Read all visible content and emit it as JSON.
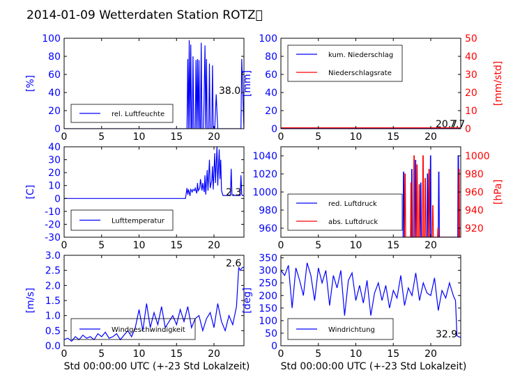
{
  "title": "2014-01-09 Wetterdaten Station ROTZ\u0000",
  "colors": {
    "primary": "#0000ff",
    "secondary": "#ff0000",
    "axis": "#000000",
    "legend_border": "#000000"
  },
  "chart_data": [
    {
      "id": "humidity",
      "type": "line",
      "ylabel": "[%]",
      "xlim": [
        0,
        24
      ],
      "ylim": [
        0,
        100
      ],
      "xticks": [
        0,
        5,
        10,
        15,
        20
      ],
      "yticks": [
        0,
        20,
        40,
        60,
        80,
        100
      ],
      "ytick_color": "#0000ff",
      "series": [
        {
          "name": "rel. Luftfeuchte",
          "color": "#0000ff",
          "x": [
            0,
            16.4,
            16.5,
            16.6,
            16.7,
            16.8,
            16.9,
            17.0,
            17.1,
            17.2,
            17.3,
            17.5,
            17.6,
            17.7,
            17.8,
            17.9,
            18.0,
            18.1,
            18.2,
            18.3,
            18.4,
            18.6,
            18.8,
            18.9,
            19.0,
            19.1,
            19.3,
            19.4,
            19.5,
            19.7,
            19.8,
            19.9,
            20.1,
            20.3,
            20.5,
            20.7,
            20.9,
            21.0,
            21.2,
            23.3,
            23.4,
            23.6,
            23.7,
            24
          ],
          "y": [
            0,
            0,
            77,
            0,
            98,
            0,
            93,
            0,
            0,
            80,
            0,
            0,
            76,
            0,
            77,
            0,
            76,
            0,
            0,
            95,
            0,
            0,
            92,
            0,
            77,
            0,
            0,
            72,
            0,
            0,
            70,
            0,
            0,
            38,
            0,
            0,
            0,
            0,
            0,
            0,
            0,
            0,
            77,
            0
          ]
        }
      ],
      "annotation": "38.0",
      "legend_location": "lower-left"
    },
    {
      "id": "precipitation",
      "type": "line",
      "ylabel": "[mm]",
      "ylabel_right": "[mm/std]",
      "xlim": [
        0,
        24
      ],
      "ylim": [
        0,
        100
      ],
      "ylim_right": [
        0,
        50
      ],
      "xticks": [
        0,
        5,
        10,
        15,
        20
      ],
      "yticks": [
        0,
        20,
        40,
        60,
        80,
        100
      ],
      "yticks_right": [
        0,
        10,
        20,
        30,
        40,
        50
      ],
      "ytick_color": "#0000ff",
      "ytick_color_right": "#ff0000",
      "series": [
        {
          "name": "kum. Niederschlag",
          "color": "#0000ff",
          "axis": "left",
          "x": [
            0,
            24
          ],
          "y": [
            0.6,
            0.6
          ]
        },
        {
          "name": "Niederschlagsrate",
          "color": "#ff0000",
          "axis": "right",
          "x": [
            0,
            24
          ],
          "y": [
            0.5,
            0.5
          ]
        }
      ],
      "annotation": "20.7",
      "annotation_right": "7.7",
      "legend_location": "upper-left"
    },
    {
      "id": "temperature",
      "type": "line",
      "ylabel": "[C]",
      "xlim": [
        0,
        24
      ],
      "ylim": [
        -30,
        40
      ],
      "xticks": [
        0,
        5,
        10,
        15,
        20
      ],
      "yticks": [
        -30,
        -20,
        -10,
        0,
        10,
        20,
        30,
        40
      ],
      "ytick_color": "#0000ff",
      "series": [
        {
          "name": "Lufttemperatur",
          "color": "#0000ff",
          "x": [
            0,
            16.2,
            16.4,
            16.5,
            16.6,
            16.8,
            16.9,
            17.1,
            17.2,
            17.4,
            17.5,
            17.7,
            17.8,
            17.9,
            18.1,
            18.2,
            18.4,
            18.5,
            18.7,
            18.8,
            18.9,
            19.1,
            19.2,
            19.4,
            19.5,
            19.7,
            19.8,
            19.9,
            20.1,
            20.2,
            20.4,
            20.5,
            20.7,
            20.8,
            20.9,
            21.0,
            21.2,
            22.2,
            22.3,
            22.4,
            22.5,
            23.5,
            23.6,
            23.7,
            23.8,
            24
          ],
          "y": [
            0,
            0,
            8,
            3,
            7,
            2,
            7,
            5,
            7,
            6,
            8,
            4,
            12,
            6,
            8,
            15,
            6,
            12,
            5,
            18,
            3,
            22,
            6,
            30,
            8,
            14,
            25,
            7,
            35,
            12,
            40,
            10,
            38,
            15,
            30,
            6,
            2.3,
            2.3,
            23,
            3,
            2.3,
            2.3,
            18,
            3,
            2.3,
            2.3
          ]
        }
      ],
      "annotation": "2.3",
      "legend_location": "lower-left"
    },
    {
      "id": "pressure",
      "type": "line",
      "ylabel_right": "[hPa]",
      "xlim": [
        0,
        24
      ],
      "ylim": [
        950,
        1050
      ],
      "ylim_right": [
        910,
        1010
      ],
      "xticks": [
        0,
        5,
        10,
        15,
        20
      ],
      "yticks": [
        960,
        980,
        1000,
        1020,
        1040
      ],
      "yticks_right": [
        920,
        940,
        960,
        980,
        1000
      ],
      "ytick_color": "#0000ff",
      "ytick_color_right": "#ff0000",
      "series": [
        {
          "name": "red. Luftdruck",
          "color": "#0000ff",
          "axis": "left",
          "x": [
            16.3,
            16.35,
            16.4,
            16.45,
            17.4,
            17.45,
            17.5,
            17.55,
            17.9,
            17.95,
            18.0,
            18.05,
            18.6,
            18.65,
            18.7,
            18.75,
            19.5,
            19.55,
            19.6,
            19.65,
            19.9,
            19.95,
            20.0,
            20.05,
            21.0,
            21.05,
            21.1,
            21.15,
            23.6,
            23.65,
            23.7,
            23.75
          ],
          "y": [
            950,
            1022,
            1022,
            950,
            950,
            1025,
            1025,
            950,
            950,
            1035,
            1035,
            950,
            950,
            1010,
            1010,
            950,
            950,
            1020,
            1020,
            950,
            950,
            1040,
            1040,
            950,
            950,
            1022,
            1022,
            950,
            950,
            1040,
            1040,
            950
          ]
        },
        {
          "name": "abs. Luftdruck",
          "color": "#ff0000",
          "axis": "right",
          "x": [
            16.5,
            16.55,
            16.6,
            16.65,
            17.3,
            17.35,
            17.4,
            17.45,
            17.7,
            17.75,
            17.8,
            17.85,
            18.1,
            18.15,
            18.2,
            18.25,
            18.4,
            18.45,
            18.5,
            18.55,
            18.9,
            18.95,
            19.0,
            19.05,
            19.2,
            19.25,
            19.3,
            19.35,
            19.7,
            19.75,
            19.8,
            19.85,
            20.2,
            20.25,
            20.3,
            20.35,
            20.9,
            20.95,
            21.0,
            21.05,
            23.7,
            23.75,
            23.8,
            23.85
          ],
          "y": [
            910,
            980,
            980,
            910,
            910,
            970,
            970,
            910,
            910,
            1000,
            1000,
            910,
            910,
            990,
            990,
            910,
            910,
            968,
            968,
            910,
            910,
            1000,
            1000,
            910,
            910,
            975,
            975,
            910,
            910,
            985,
            985,
            910,
            910,
            945,
            945,
            910,
            910,
            920,
            920,
            910,
            910,
            985,
            985,
            910
          ]
        }
      ],
      "legend_location": "lower-left"
    },
    {
      "id": "wind_speed",
      "type": "line",
      "ylabel": "[m/s]",
      "xlabel": "Std 00:00:00 UTC (+-23 Std Lokalzeit)",
      "xlim": [
        0,
        24
      ],
      "ylim": [
        0,
        3.0
      ],
      "xticks": [
        0,
        5,
        10,
        15,
        20
      ],
      "yticks": [
        0.0,
        0.5,
        1.0,
        1.5,
        2.0,
        2.5,
        3.0
      ],
      "ytick_color": "#0000ff",
      "series": [
        {
          "name": "Windgeschwindigkeit",
          "color": "#0000ff",
          "x": [
            0,
            0.5,
            1,
            1.5,
            2,
            2.5,
            3,
            3.5,
            4,
            4.5,
            5,
            5.5,
            6,
            6.5,
            7,
            7.5,
            8,
            8.5,
            9,
            9.5,
            10,
            10.5,
            11,
            11.5,
            12,
            12.5,
            13,
            13.5,
            14,
            14.5,
            15,
            15.5,
            16,
            16.5,
            17,
            17.5,
            18,
            18.5,
            19,
            19.5,
            20,
            20.5,
            21,
            21.5,
            22,
            22.5,
            23,
            23.3,
            23.5,
            23.8,
            24
          ],
          "y": [
            0.2,
            0.25,
            0.15,
            0.3,
            0.2,
            0.35,
            0.25,
            0.3,
            0.2,
            0.4,
            0.3,
            0.45,
            0.25,
            0.3,
            0.4,
            0.2,
            0.35,
            0.5,
            0.3,
            0.6,
            1.2,
            0.5,
            1.4,
            0.6,
            1.1,
            0.7,
            1.3,
            0.6,
            0.8,
            1.0,
            0.7,
            1.2,
            0.8,
            1.3,
            0.6,
            0.9,
            1.0,
            0.5,
            0.9,
            1.1,
            0.6,
            1.4,
            0.8,
            0.5,
            1.0,
            0.7,
            1.3,
            2.6,
            2.5,
            2.6,
            2.6
          ]
        }
      ],
      "annotation": "2.6",
      "legend_location": "lower-left"
    },
    {
      "id": "wind_direction",
      "type": "line",
      "ylabel": "[deg]",
      "xlabel": "Std 00:00:00 UTC (+-23 Std Lokalzeit)",
      "xlim": [
        0,
        24
      ],
      "ylim": [
        0,
        360
      ],
      "xticks": [
        0,
        5,
        10,
        15,
        20
      ],
      "yticks": [
        0,
        50,
        100,
        150,
        200,
        250,
        300,
        350
      ],
      "ytick_color": "#0000ff",
      "series": [
        {
          "name": "Windrichtung",
          "color": "#0000ff",
          "x": [
            0,
            0.5,
            1,
            1.5,
            2,
            2.5,
            3,
            3.5,
            4,
            4.5,
            5,
            5.5,
            6,
            6.5,
            7,
            7.5,
            8,
            8.5,
            9,
            9.5,
            10,
            10.5,
            11,
            11.5,
            12,
            12.5,
            13,
            13.5,
            14,
            14.5,
            15,
            15.5,
            16,
            16.5,
            17,
            17.5,
            18,
            18.5,
            19,
            19.5,
            20,
            20.5,
            21,
            21.5,
            22,
            22.5,
            23,
            23.3,
            23.5,
            23.8,
            24
          ],
          "y": [
            300,
            280,
            320,
            150,
            310,
            260,
            200,
            330,
            280,
            180,
            310,
            250,
            300,
            160,
            280,
            230,
            300,
            120,
            260,
            290,
            180,
            240,
            170,
            260,
            120,
            210,
            250,
            180,
            240,
            150,
            220,
            190,
            280,
            160,
            230,
            200,
            290,
            180,
            250,
            210,
            200,
            270,
            140,
            220,
            190,
            250,
            200,
            180,
            40,
            35,
            33
          ]
        }
      ],
      "annotation": "32.9",
      "legend_location": "lower-left"
    }
  ]
}
